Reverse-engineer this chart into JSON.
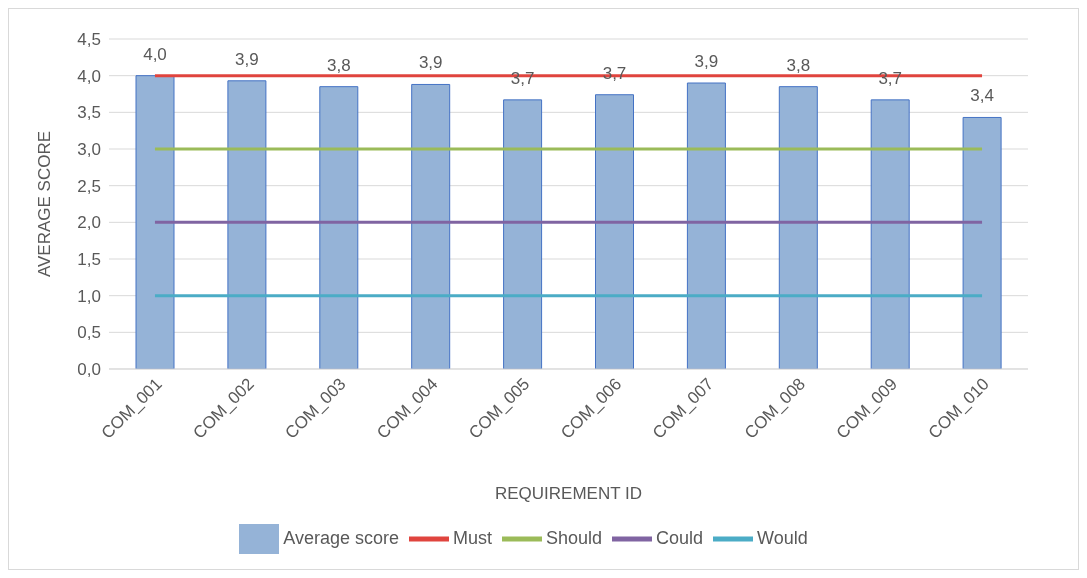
{
  "chart_data": {
    "type": "bar",
    "xlabel": "REQUIREMENT ID",
    "ylabel": "AVERAGE SCORE",
    "categories": [
      "COM_001",
      "COM_002",
      "COM_003",
      "COM_004",
      "COM_005",
      "COM_006",
      "COM_007",
      "COM_008",
      "COM_009",
      "COM_010"
    ],
    "series": [
      {
        "name": "Average score",
        "color": "#95b3d7",
        "values": [
          4.0,
          3.93,
          3.85,
          3.88,
          3.67,
          3.74,
          3.9,
          3.85,
          3.67,
          3.43
        ],
        "value_labels": [
          "4,0",
          "3,9",
          "3,8",
          "3,9",
          "3,7",
          "3,7",
          "3,9",
          "3,8",
          "3,7",
          "3,4"
        ]
      },
      {
        "name": "Must",
        "type": "line",
        "color": "#e0443e",
        "values": [
          4,
          4,
          4,
          4,
          4,
          4,
          4,
          4,
          4,
          4
        ]
      },
      {
        "name": "Should",
        "type": "line",
        "color": "#9bbb59",
        "values": [
          3,
          3,
          3,
          3,
          3,
          3,
          3,
          3,
          3,
          3
        ]
      },
      {
        "name": "Could",
        "type": "line",
        "color": "#8064a2",
        "values": [
          2,
          2,
          2,
          2,
          2,
          2,
          2,
          2,
          2,
          2
        ]
      },
      {
        "name": "Would",
        "type": "line",
        "color": "#4bacc6",
        "values": [
          1,
          1,
          1,
          1,
          1,
          1,
          1,
          1,
          1,
          1
        ]
      }
    ],
    "ylim": [
      0,
      4.5
    ],
    "yticks": [
      {
        "value": 0,
        "label": "0,0"
      },
      {
        "value": 0.5,
        "label": "0,5"
      },
      {
        "value": 1,
        "label": "1,0"
      },
      {
        "value": 1.5,
        "label": "1,5"
      },
      {
        "value": 2,
        "label": "2,0"
      },
      {
        "value": 2.5,
        "label": "2,5"
      },
      {
        "value": 3,
        "label": "3,0"
      },
      {
        "value": 3.5,
        "label": "3,5"
      },
      {
        "value": 4,
        "label": "4,0"
      },
      {
        "value": 4.5,
        "label": "4,5"
      }
    ],
    "grid": "y",
    "legend": "bottom",
    "line_style": "solid"
  }
}
